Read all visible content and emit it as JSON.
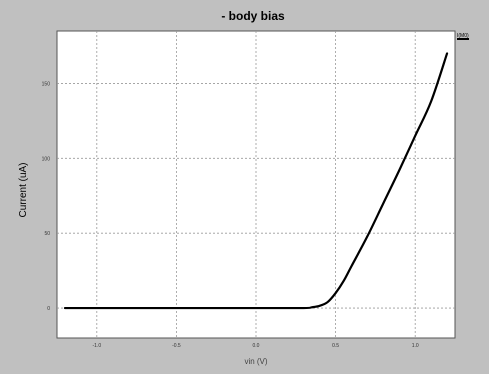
{
  "chart_data": {
    "type": "line",
    "title": "- body bias",
    "xlabel": "vin (V)",
    "ylabel": "Current (uA)",
    "xlim": [
      -1.25,
      1.25
    ],
    "ylim": [
      -20,
      185
    ],
    "xticks": [
      -1.0,
      -0.5,
      0.0,
      0.5,
      1.0
    ],
    "xtick_labels": [
      "-1.0",
      "-0.5",
      "0.0",
      "0.5",
      "1.0"
    ],
    "yticks": [
      0,
      50,
      100,
      150
    ],
    "ytick_labels": [
      "0",
      "50",
      "100",
      "150"
    ],
    "grid": true,
    "legend_position": "top-right",
    "series": [
      {
        "name": "I(M0)",
        "color": "#000000",
        "x": [
          -1.2,
          -1.0,
          -0.5,
          0.0,
          0.3,
          0.35,
          0.4,
          0.45,
          0.5,
          0.55,
          0.6,
          0.7,
          0.8,
          0.9,
          1.0,
          1.1,
          1.2
        ],
        "y": [
          0,
          0,
          0,
          0,
          0,
          0.5,
          1.5,
          4,
          10,
          18,
          28,
          48,
          70,
          92,
          115,
          138,
          170
        ]
      }
    ]
  },
  "colors": {
    "background": "#c0c0c0",
    "plot_area": "#ffffff",
    "grid": "#9a9a9a",
    "line": "#000000"
  }
}
